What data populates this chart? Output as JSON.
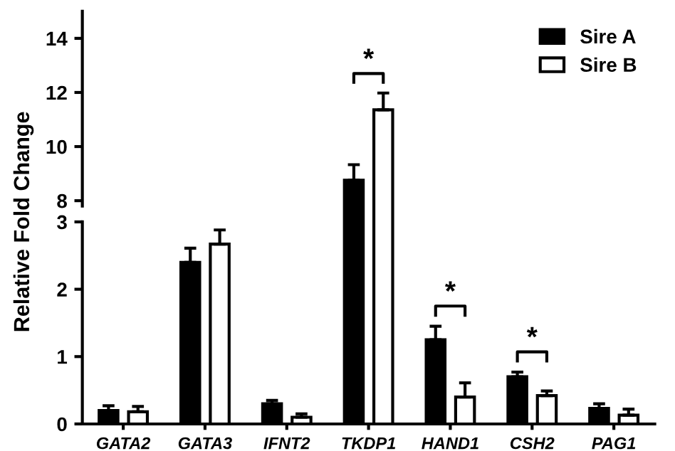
{
  "chart_data": [
    {
      "type": "bar",
      "series": [
        {
          "name": "Sire A",
          "color": "#000000",
          "values": [
            null,
            null,
            null,
            8.76,
            null,
            null,
            null
          ],
          "errors": [
            null,
            null,
            null,
            [
              8.76,
              9.33
            ],
            null,
            null,
            null
          ]
        },
        {
          "name": "Sire B",
          "color": "#ffffff",
          "values": [
            null,
            null,
            null,
            11.36,
            null,
            null,
            null
          ],
          "errors": [
            null,
            null,
            null,
            [
              11.36,
              11.98
            ],
            null,
            null,
            null
          ]
        }
      ],
      "ylim": [
        7.8,
        15
      ],
      "yticks": [
        8,
        10,
        12,
        14
      ],
      "tick_labels": "y",
      "legend": "top right",
      "grid": false,
      "annotations": [
        "*"
      ]
    },
    {
      "type": "bar",
      "categories": [
        "GATA2",
        "GATA3",
        "IFNT2",
        "TKDP1",
        "HAND1",
        "CSH2",
        "PAG1"
      ],
      "series": [
        {
          "color": "#000000",
          "values": [
            0.2,
            2.4,
            0.3,
            null,
            1.25,
            0.7,
            0.23
          ],
          "errors": [
            [
              0.2,
              0.27
            ],
            [
              2.4,
              2.61
            ],
            [
              0.3,
              0.35
            ],
            null,
            [
              1.25,
              1.45
            ],
            [
              0.7,
              0.77
            ],
            [
              0.23,
              0.3
            ]
          ]
        },
        {
          "color": "#ffffff",
          "values": [
            0.18,
            2.67,
            0.1,
            null,
            0.4,
            0.42,
            0.13
          ],
          "errors": [
            [
              0.18,
              0.26
            ],
            [
              2.67,
              2.88
            ],
            [
              0.1,
              0.15
            ],
            null,
            [
              0.4,
              0.61
            ],
            [
              0.42,
              0.49
            ],
            [
              0.13,
              0.22
            ]
          ]
        }
      ],
      "ylim": [
        0,
        3
      ],
      "yticks": [
        0,
        1,
        2,
        3
      ],
      "ylabel": "Relative Fold Change",
      "grid": false,
      "annotations": [
        "*",
        "*"
      ]
    }
  ]
}
